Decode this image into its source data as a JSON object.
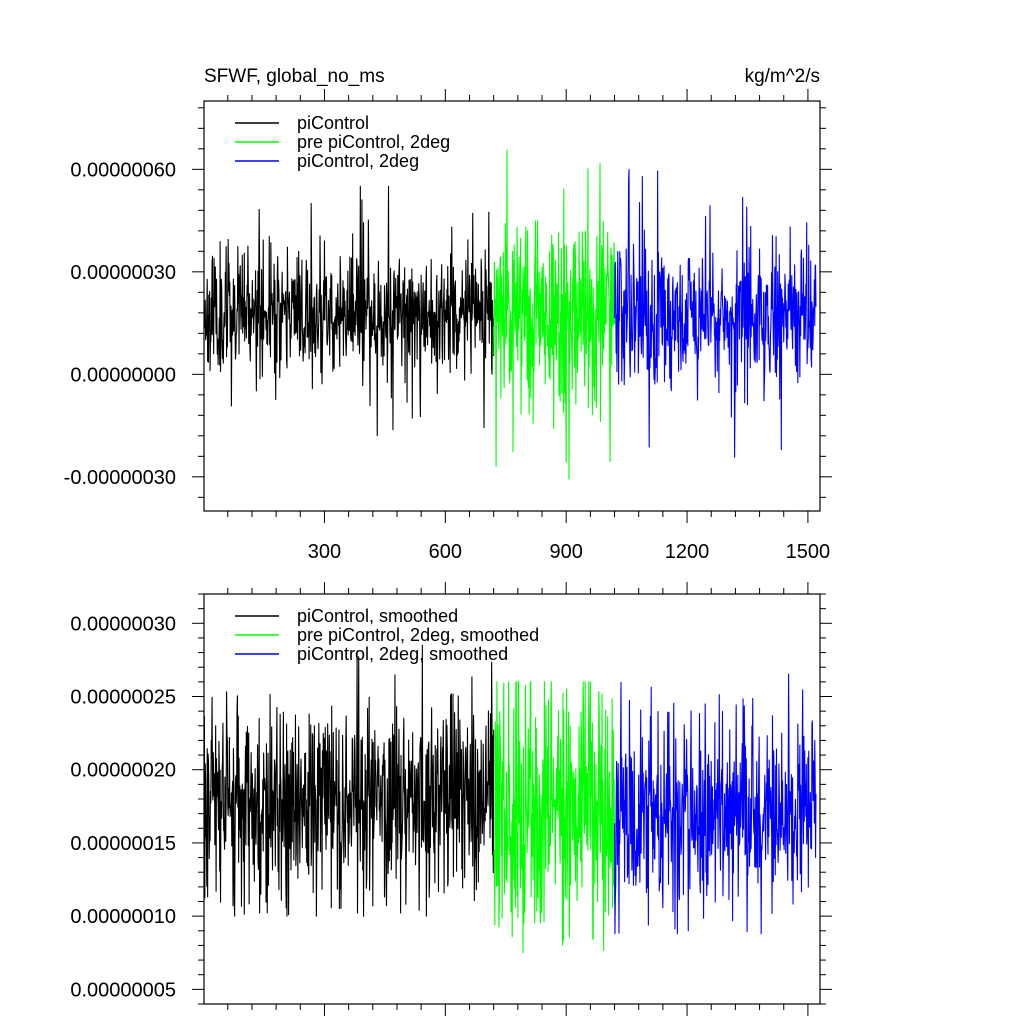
{
  "title_left": "SFWF, global_no_ms",
  "title_right": "kg/m^2/s",
  "chart_data": [
    {
      "type": "line",
      "xlim": [
        1,
        1530
      ],
      "ylim": [
        -4e-07,
        8e-07
      ],
      "yticks": [
        -3e-07,
        0.0,
        3e-07,
        6e-07
      ],
      "ytick_labels": [
        "-0.00000030",
        "0.00000000",
        "0.00000030",
        "0.00000060"
      ],
      "xticks": [
        300,
        600,
        900,
        1200,
        1500
      ],
      "xtick_labels": [
        "300",
        "600",
        "900",
        "1200",
        "1500"
      ],
      "legend_position": "top-left",
      "series": [
        {
          "name": "piControl",
          "color": "#000000",
          "x_start": 1,
          "x_end": 720,
          "mean": 1.8e-07,
          "noise_sd": 9e-08,
          "spike_max": 5.6e-07,
          "spike_min": -1.8e-07
        },
        {
          "name": "pre piControl, 2deg",
          "color": "#00ff00",
          "x_start": 720,
          "x_end": 1020,
          "mean": 1.7e-07,
          "noise_sd": 1.4e-07,
          "spike_max": 6.6e-07,
          "spike_min": -3.3e-07
        },
        {
          "name": "piControl, 2deg",
          "color": "#0000ff",
          "x_start": 1020,
          "x_end": 1520,
          "mean": 1.7e-07,
          "noise_sd": 1.1e-07,
          "spike_max": 6e-07,
          "spike_min": -2.5e-07
        }
      ]
    },
    {
      "type": "line",
      "xlim": [
        1,
        1530
      ],
      "ylim": [
        4e-08,
        3.2e-07
      ],
      "yticks": [
        5e-08,
        1e-07,
        1.5e-07,
        2e-07,
        2.5e-07,
        3e-07
      ],
      "ytick_labels": [
        "0.00000005",
        "0.00000010",
        "0.00000015",
        "0.00000020",
        "0.00000025",
        "0.00000030"
      ],
      "xticks": [
        300,
        600,
        900,
        1200,
        1500
      ],
      "xtick_labels": [],
      "legend_position": "top-left",
      "series": [
        {
          "name": "piControl, smoothed",
          "color": "#000000",
          "x_start": 1,
          "x_end": 720,
          "mean": 1.8e-07,
          "noise_sd": 3.5e-08,
          "spike_max": 2.85e-07,
          "spike_min": 1e-07
        },
        {
          "name": "pre piControl, 2deg, smoothed",
          "color": "#00ff00",
          "x_start": 720,
          "x_end": 1020,
          "mean": 1.7e-07,
          "noise_sd": 4.5e-08,
          "spike_max": 2.6e-07,
          "spike_min": 7.5e-08
        },
        {
          "name": "piControl, 2deg, smoothed",
          "color": "#0000ff",
          "x_start": 1020,
          "x_end": 1520,
          "mean": 1.7e-07,
          "noise_sd": 3.2e-08,
          "spike_max": 2.67e-07,
          "spike_min": 8.8e-08
        }
      ]
    }
  ]
}
